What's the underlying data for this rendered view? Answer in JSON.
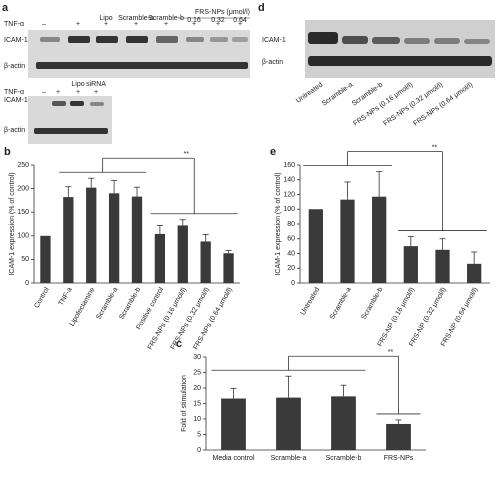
{
  "blot_a": {
    "letter": "a",
    "treatment": "TNF-α",
    "dose_header": "FRS-NPs (μmol/l)",
    "lane_names": [
      "Lipo",
      "Scramble-a",
      "Scramble-b",
      "0.16",
      "0.32",
      "0.64"
    ],
    "lane_signs": [
      "–",
      "+",
      "+",
      "+",
      "+",
      "+",
      "+",
      "+"
    ],
    "rows": [
      "ICAM-1",
      "β-actin"
    ],
    "lower": {
      "treatment": "TNF-α",
      "lane_names": [
        "Lipo",
        "siRNA"
      ],
      "lane_signs": [
        "–",
        "+",
        "+",
        "+"
      ],
      "rows": [
        "ICAM-1",
        "β-actin"
      ]
    }
  },
  "blot_d": {
    "letter": "d",
    "rows": [
      "ICAM-1",
      "β-actin"
    ],
    "lanes": [
      "Untreated",
      "Scramble-a",
      "Scramble-b",
      "FRS-NPs (0.16 μmol/l)",
      "FRS-NPs (0.32 μmol/l)",
      "FRS-NPs (0.64 μmol/l)"
    ]
  },
  "chart_data": [
    {
      "type": "bar",
      "letter": "b",
      "y_label": "ICAM-1 expression (% of control)",
      "categories": [
        "Control",
        "TNF-a",
        "Lipofectamine",
        "Scramble-a",
        "Scramble-b",
        "Positive control",
        "FRS-NPs (0.16 μmol/l)",
        "FRS-NPs (0.32 μmol/l)",
        "FRS-NPs (0.64 μmol/l)"
      ],
      "values": [
        100,
        182,
        202,
        190,
        183,
        104,
        122,
        88,
        63
      ],
      "errors": [
        null,
        22,
        20,
        27,
        20,
        18,
        12,
        15,
        6
      ],
      "color": "#3a3a3a",
      "ylim": [
        0,
        250
      ],
      "yticks": [
        0,
        50,
        100,
        150,
        200,
        250
      ],
      "annotation": "**"
    },
    {
      "type": "bar",
      "letter": "e",
      "y_label": "ICAM-1 expression (% of control)",
      "categories": [
        "Untreated",
        "Scramble-a",
        "Scramble-b",
        "FRS-NP (0.16 μmol/l)",
        "FRS-NP (0.32 μmol/l)",
        "FRS-NP (0.64 μmol/l)"
      ],
      "values": [
        100,
        113,
        117,
        50,
        45,
        26
      ],
      "errors": [
        null,
        24,
        34,
        13,
        15,
        16
      ],
      "color": "#3a3a3a",
      "ylim": [
        0,
        160
      ],
      "yticks": [
        0,
        20,
        40,
        60,
        80,
        100,
        120,
        140,
        160
      ],
      "annotation": "**"
    },
    {
      "type": "bar",
      "letter": "c",
      "y_label": "Fold of stimulation",
      "categories": [
        "Media control",
        "Scramble-a",
        "Scramble-b",
        "FRS-NPs"
      ],
      "values": [
        16.6,
        16.9,
        17.3,
        8.4
      ],
      "errors": [
        3.3,
        6.9,
        3.6,
        1.3
      ],
      "color": "#3a3a3a",
      "ylim": [
        0,
        30
      ],
      "yticks": [
        0,
        5,
        10,
        15,
        20,
        25,
        30
      ],
      "annotation": "**"
    }
  ]
}
